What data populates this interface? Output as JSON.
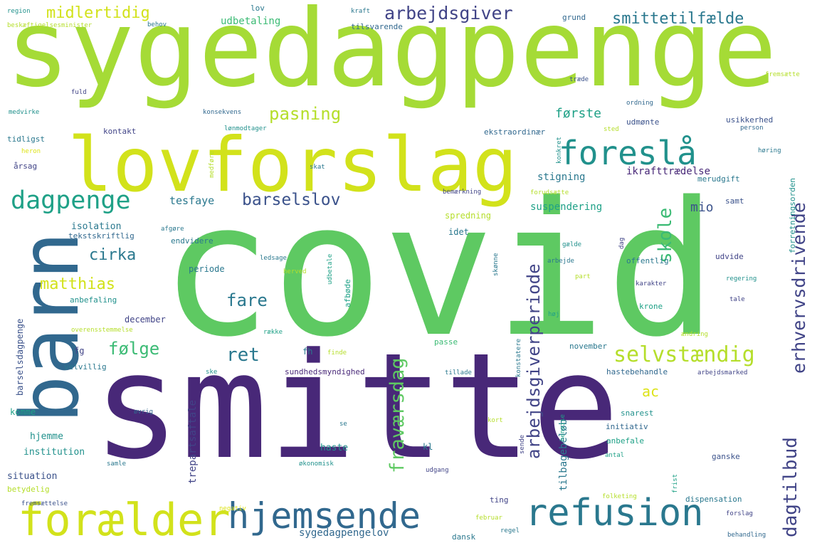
{
  "palette": {
    "yellow": "#d2e21b",
    "yellow_light": "#dde318",
    "lime": "#a5db36",
    "light_green": "#b5de2b",
    "green": "#5ec962",
    "med_green": "#3cbb75",
    "teal_green": "#1fa187",
    "teal": "#21918c",
    "teal_blue": "#2a788e",
    "blue": "#31688e",
    "slate": "#3b528b",
    "indigo": "#414487",
    "purple": "#482878",
    "dark_purple": "#440154"
  },
  "words": [
    "sygedagpenge",
    "covid",
    "smitte",
    "lovforslag",
    "barn",
    "forælder",
    "refusion",
    "hjemsende",
    "foreslå",
    "dagpenge",
    "selvstændig",
    "fraværsdag",
    "arbejdsgiverperiode",
    "skole",
    "erhvervsdrivende",
    "dagtilbud",
    "arbejdsgiver",
    "midlertidig",
    "smittetilfælde",
    "barselslov",
    "pasning",
    "ret",
    "cirka",
    "følge",
    "matthias",
    "fare",
    "mio",
    "ac",
    "første",
    "tesfaye",
    "suspendering",
    "stigning",
    "ikrafttrædelse",
    "udbetaling",
    "sygedagpengelov",
    "tilbagebeløb",
    "trepartsaftale",
    "barselsdagpenge",
    "isolation",
    "december",
    "institution",
    "situation",
    "hjemme",
    "haste",
    "fg",
    "fh",
    "kl",
    "idet",
    "periode",
    "krone",
    "november",
    "initiativ",
    "anbefale",
    "hastebehandle",
    "dispensation",
    "udvide",
    "tilsvarende",
    "grund",
    "lov",
    "kraft",
    "region",
    "beskæftigelsesminister",
    "behov",
    "tidligst",
    "årsag",
    "kontakt",
    "medvirke",
    "fuld",
    "konsekvens",
    "lønmodtager",
    "ordning",
    "udmønte",
    "ekstraordinær",
    "usikkerhed",
    "person",
    "sted",
    "høring",
    "konkret",
    "skat",
    "medføre",
    "heron",
    "merudgift",
    "bemærkning",
    "forudsætte",
    "samt",
    "forretningsorden",
    "fremsætte",
    "træde",
    "spredning",
    "tekstskriftlig",
    "afgøre",
    "endvidere",
    "afbøde",
    "ledsage",
    "udbetale",
    "skønne",
    "herved",
    "arbejde",
    "gælde",
    "dag",
    "offentlig",
    "regering",
    "karakter",
    "part",
    "tale",
    "høj",
    "anbefaling",
    "overensstemmelse",
    "række",
    "passe",
    "finde",
    "konstatere",
    "tillade",
    "ændring",
    "velvillig",
    "sundhedsmyndighed",
    "ske",
    "arbejdsmarked",
    "komme",
    "øvrig",
    "snarest",
    "se",
    "kort",
    "henvise",
    "sende",
    "samle",
    "økonomisk",
    "udgang",
    "antal",
    "ganske",
    "betydelig",
    "ting",
    "folketing",
    "frist",
    "fremsættelse",
    "negativ",
    "februar",
    "regel",
    "dansk",
    "behandling",
    "forslag"
  ]
}
